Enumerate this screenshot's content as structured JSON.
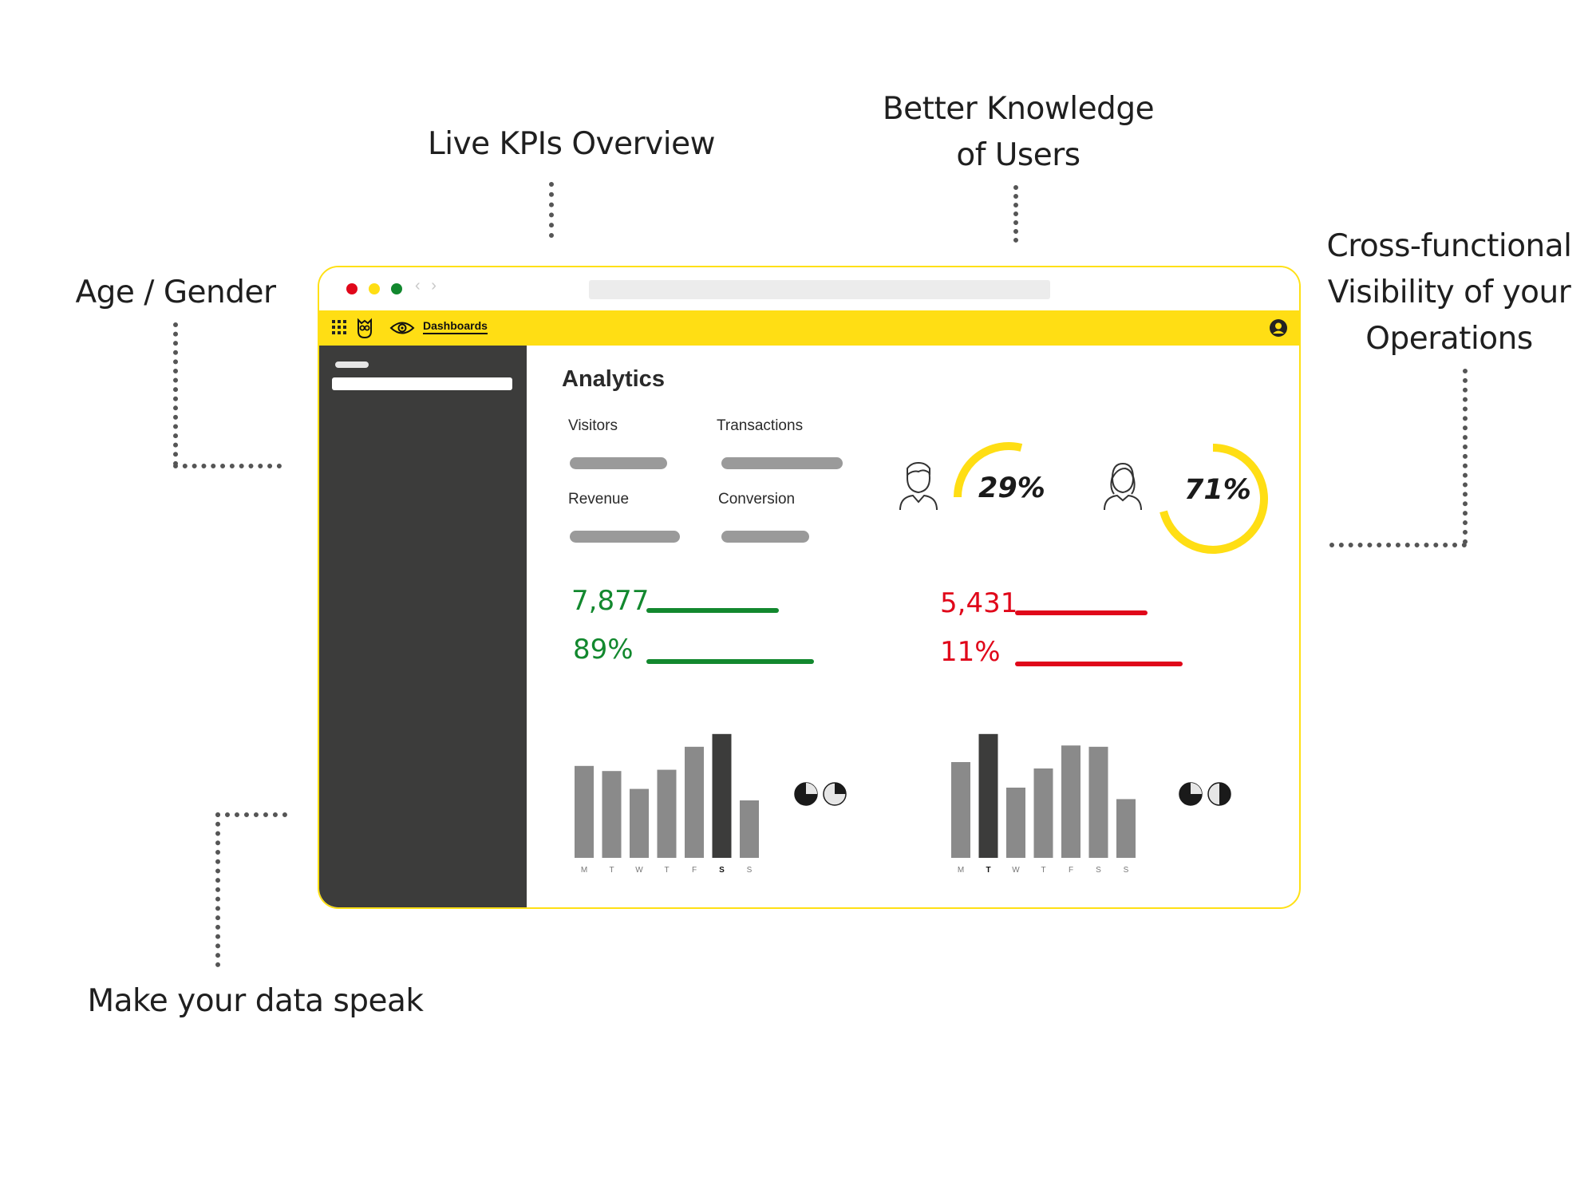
{
  "callouts": {
    "live_kpis": "Live KPIs Overview",
    "better_knowledge": "Better Knowledge\nof Users",
    "cross_functional": "Cross-functional\nVisibility of your\nOperations",
    "age_gender": "Age / Gender",
    "make_data_speak": "Make your data speak"
  },
  "colors": {
    "brand_yellow": "#ffde14",
    "positive_green": "#12882e",
    "negative_red": "#e0071a",
    "sidebar_dark": "#3c3c3b"
  },
  "browser": {
    "traffic_lights": [
      "#e0071a",
      "#ffde14",
      "#12882e"
    ],
    "nav_arrows": "‹ ›"
  },
  "topbar": {
    "apps_icon": "apps-grid-icon",
    "logo_icon": "owl-logo-icon",
    "eye_icon": "eye-icon",
    "active_link": "Dashboards",
    "user_icon": "user-account-icon"
  },
  "page": {
    "title": "Analytics",
    "kpis": [
      {
        "label": "Visitors"
      },
      {
        "label": "Transactions"
      },
      {
        "label": "Revenue"
      },
      {
        "label": "Conversion"
      }
    ]
  },
  "demographics": {
    "male": {
      "icon": "male-user-icon",
      "percent": "29%",
      "fraction": 0.29
    },
    "female": {
      "icon": "female-user-icon",
      "percent": "71%",
      "fraction": 0.71
    }
  },
  "stats": {
    "positive_value": "7,877",
    "positive_percent": "89%",
    "negative_value": "5,431",
    "negative_percent": "11%"
  },
  "chart_data": [
    {
      "type": "bar",
      "categories": [
        "M",
        "T",
        "W",
        "T",
        "F",
        "S",
        "S"
      ],
      "values": [
        72,
        68,
        54,
        69,
        87,
        97,
        45
      ],
      "highlight_index": 5,
      "ylim": [
        0,
        100
      ],
      "title": "",
      "xlabel": "",
      "ylabel": ""
    },
    {
      "type": "bar",
      "categories": [
        "M",
        "T",
        "W",
        "T",
        "F",
        "S",
        "S"
      ],
      "values": [
        75,
        97,
        55,
        70,
        88,
        87,
        46
      ],
      "highlight_index": 1,
      "ylim": [
        0,
        100
      ],
      "title": "",
      "xlabel": "",
      "ylabel": ""
    }
  ],
  "pie_pairs": [
    {
      "fractions": [
        0.75,
        0.25
      ]
    },
    {
      "fractions": [
        0.75,
        0.5
      ]
    }
  ]
}
